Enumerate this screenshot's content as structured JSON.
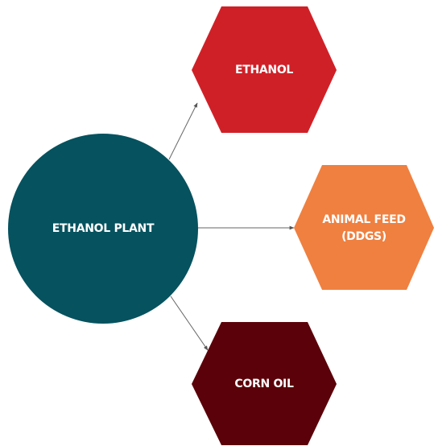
{
  "nodes": [
    {
      "label": [
        "ETHANOL PLANT"
      ]
    },
    {
      "label": [
        "ETHANOL"
      ]
    },
    {
      "label": [
        "ANIMAL FEED",
        "(DDGS)"
      ]
    },
    {
      "label": [
        "CORN OIL"
      ]
    }
  ]
}
